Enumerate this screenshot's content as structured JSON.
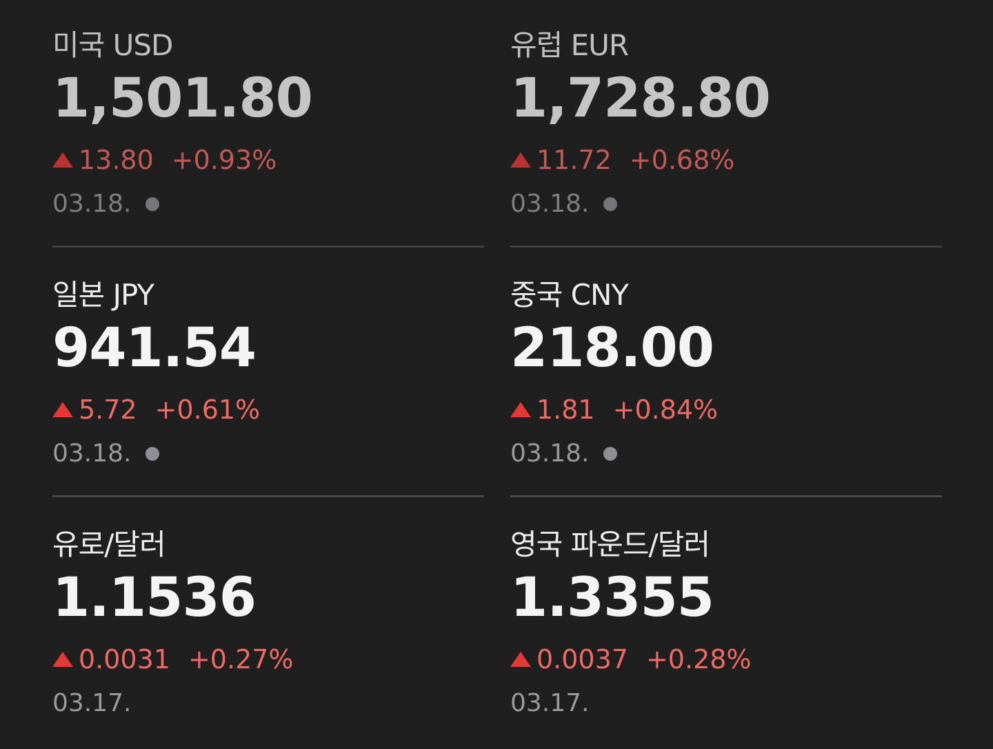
{
  "items": [
    {
      "name": "미국 USD",
      "price": "1,501.80",
      "change": "13.80",
      "change_pct": "+0.93%",
      "date": "03.18."
    },
    {
      "name": "유럽 EUR",
      "price": "1,728.80",
      "change": "11.72",
      "change_pct": "+0.68%",
      "date": "03.18."
    },
    {
      "name": "일본 JPY",
      "price": "941.54",
      "change": "5.72",
      "change_pct": "+0.61%",
      "date": "03.18."
    },
    {
      "name": "중국 CNY",
      "price": "218.00",
      "change": "1.81",
      "change_pct": "+0.84%",
      "date": "03.18."
    },
    {
      "name": "유로/달러",
      "price": "1.1536",
      "change": "0.0031",
      "change_pct": "+0.27%",
      "date": "03.17."
    },
    {
      "name": "영국 파운드/달러",
      "price": "1.3355",
      "change": "0.0037",
      "change_pct": "+0.28%",
      "date": "03.17."
    }
  ]
}
